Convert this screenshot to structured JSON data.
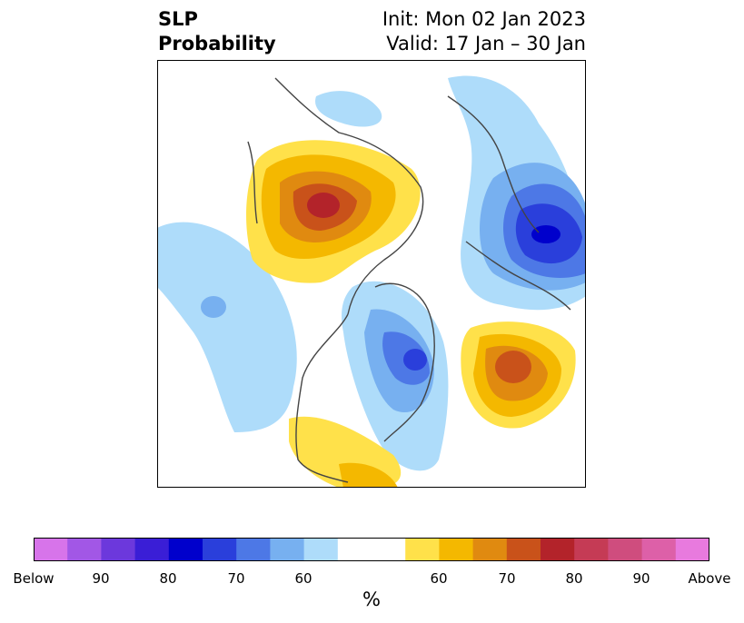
{
  "title": {
    "left_line1": "SLP",
    "left_line2": "Probability",
    "right_line1": "Init: Mon 02 Jan 2023",
    "right_line2": "Valid: 17 Jan – 30 Jan"
  },
  "colorbar": {
    "colors": [
      "#d774ea",
      "#a257e6",
      "#6c38dc",
      "#3a1ed6",
      "#0000cc",
      "#2a3fdb",
      "#4d78e6",
      "#77b0f0",
      "#aedcfa",
      "#ffffff",
      "#ffe14a",
      "#f4b800",
      "#e08a10",
      "#c9521a",
      "#b3232a",
      "#c53b55",
      "#cf4d7e",
      "#dd60a8",
      "#e87ade"
    ],
    "tick_labels": [
      "Below",
      "90",
      "80",
      "70",
      "60",
      "60",
      "70",
      "80",
      "90",
      "Above"
    ],
    "unit": "%"
  }
}
